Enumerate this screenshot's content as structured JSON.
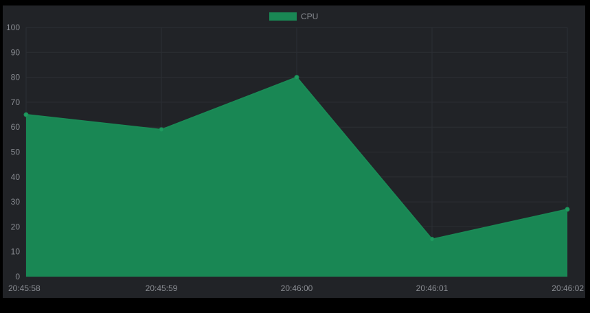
{
  "chart_data": {
    "type": "area",
    "title": "",
    "xlabel": "",
    "ylabel": "",
    "x": [
      "20:45:58",
      "20:45:59",
      "20:46:00",
      "20:46:01",
      "20:46:02"
    ],
    "series": [
      {
        "name": "CPU",
        "values": [
          65,
          59,
          80,
          15,
          27
        ]
      }
    ],
    "ylim": [
      0,
      100
    ],
    "yticks": [
      0,
      10,
      20,
      30,
      40,
      50,
      60,
      70,
      80,
      90,
      100
    ],
    "grid": true,
    "legend": "top-center",
    "colors": {
      "fill": "#198754",
      "line": "#1a8a56",
      "point": "#1f9a5e",
      "legend_swatch": "#198754",
      "text": "#8a8d93",
      "grid": "#2c2f34",
      "background": "#212327",
      "page": "#000000"
    }
  }
}
